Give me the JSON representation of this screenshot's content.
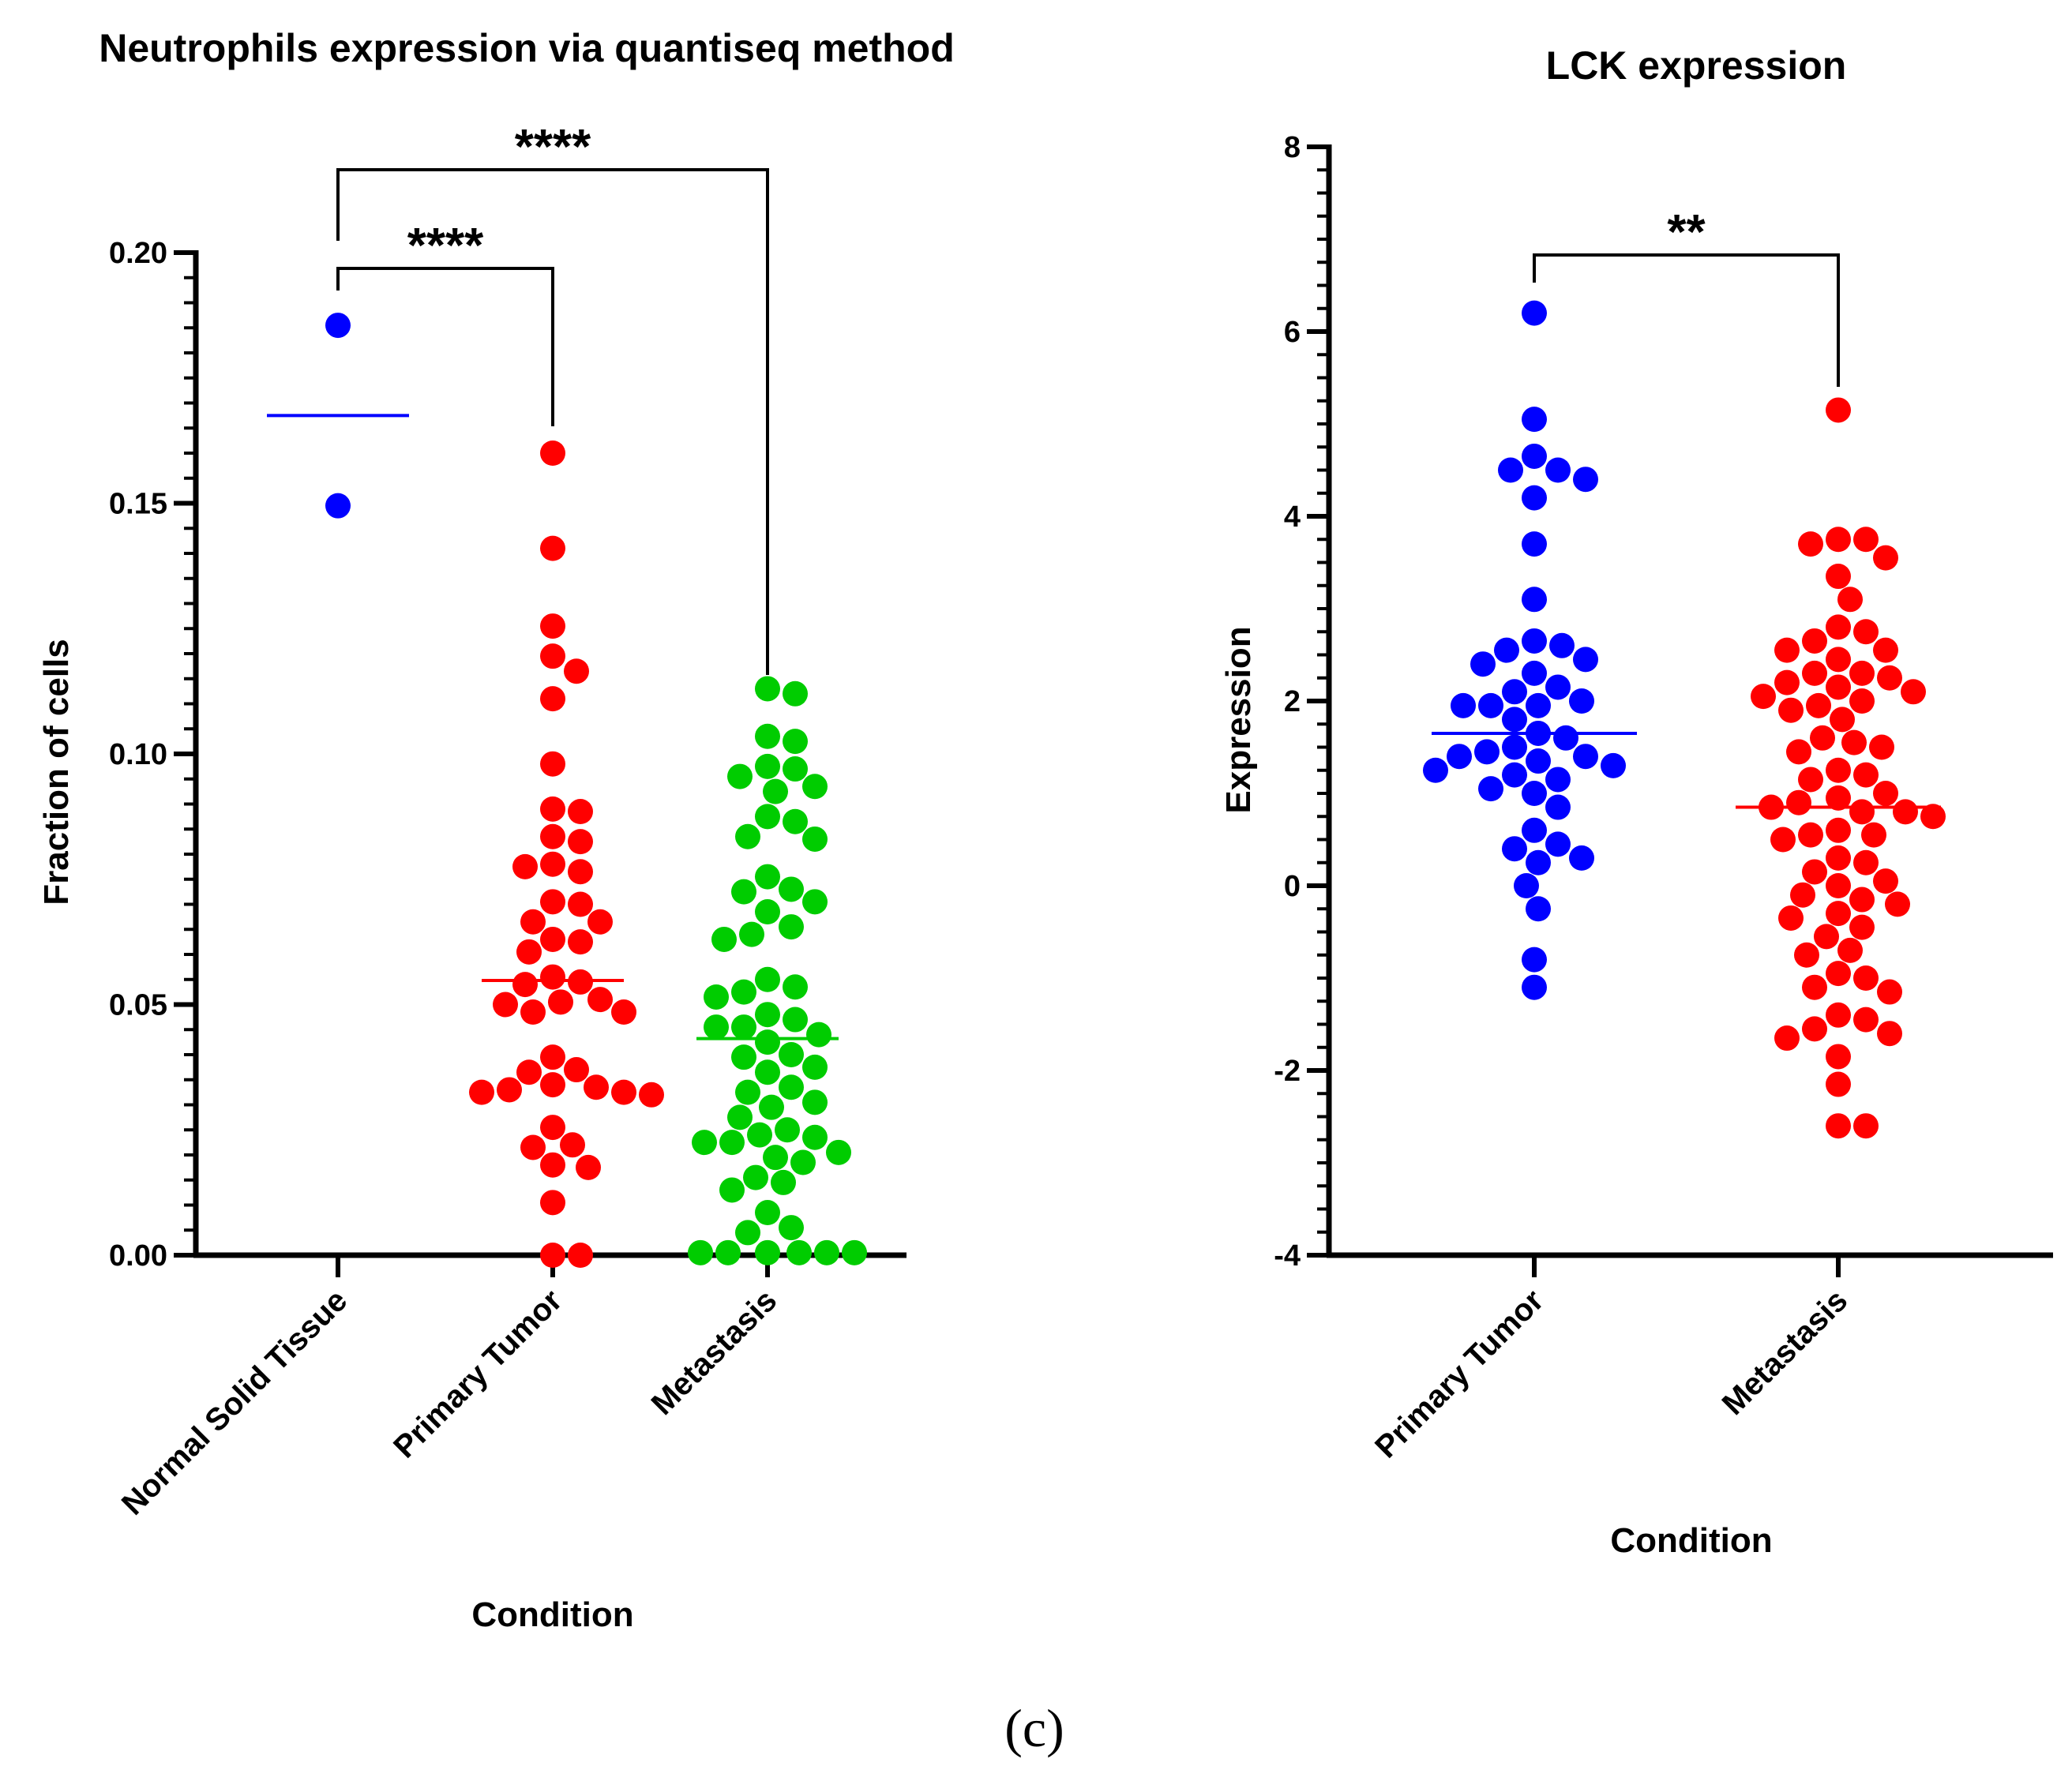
{
  "panel_label": "(c)",
  "chart_data": [
    {
      "type": "scatter",
      "title": "Neutrophils expression via quantiseq method",
      "xlabel": "Condition",
      "ylabel": "Fraction of cells",
      "ylim": [
        0,
        0.2
      ],
      "yticks": [
        "0.00",
        "0.05",
        "0.10",
        "0.15",
        "0.20"
      ],
      "categories": [
        "Normal Solid Tissue",
        "Primary Tumor",
        "Metastasis"
      ],
      "series": [
        {
          "name": "Normal Solid Tissue",
          "color": "#0000ff",
          "mean": 0.1675,
          "values": [
            0.1855,
            0.1495
          ]
        },
        {
          "name": "Primary Tumor",
          "color": "#ff0000",
          "mean": 0.0548,
          "values": [
            0.16,
            0.141,
            0.1255,
            0.1195,
            0.1165,
            0.111,
            0.098,
            0.089,
            0.0885,
            0.0835,
            0.0825,
            0.078,
            0.0775,
            0.0765,
            0.0705,
            0.07,
            0.0665,
            0.0665,
            0.063,
            0.0625,
            0.0605,
            0.0555,
            0.054,
            0.0545,
            0.05,
            0.0505,
            0.051,
            0.0485,
            0.0485,
            0.0395,
            0.037,
            0.0365,
            0.0335,
            0.034,
            0.0325,
            0.033,
            0.032,
            0.0325,
            0.0255,
            0.022,
            0.0215,
            0.018,
            0.0175,
            0.0105,
            0.0,
            0.0
          ]
        },
        {
          "name": "Metastasis",
          "color": "#00cc00",
          "mean": 0.0432,
          "values": [
            0.113,
            0.112,
            0.1035,
            0.1025,
            0.0975,
            0.097,
            0.0955,
            0.0935,
            0.0925,
            0.0875,
            0.0865,
            0.083,
            0.0835,
            0.0755,
            0.073,
            0.0725,
            0.0705,
            0.0685,
            0.0655,
            0.064,
            0.063,
            0.055,
            0.0535,
            0.0525,
            0.0515,
            0.048,
            0.047,
            0.0455,
            0.0455,
            0.044,
            0.0425,
            0.04,
            0.0395,
            0.0375,
            0.0365,
            0.0335,
            0.0325,
            0.0305,
            0.0295,
            0.0275,
            0.025,
            0.024,
            0.0235,
            0.0225,
            0.0225,
            0.0205,
            0.0195,
            0.0185,
            0.0155,
            0.0145,
            0.013,
            0.0085,
            0.0055,
            0.0045,
            0.0005,
            0.0005,
            0.0005,
            0.0005,
            0.0005,
            0.0005
          ]
        }
      ],
      "comparisons": [
        {
          "from": "Normal Solid Tissue",
          "to": "Primary Tumor",
          "label": "****"
        },
        {
          "from": "Normal Solid Tissue",
          "to": "Metastasis",
          "label": "****"
        }
      ]
    },
    {
      "type": "scatter",
      "title": "LCK expression",
      "xlabel": "Condition",
      "ylabel": "Expression",
      "ylim": [
        -4,
        8
      ],
      "yticks": [
        "-4",
        "-2",
        "0",
        "2",
        "4",
        "6",
        "8"
      ],
      "categories": [
        "Primary Tumor",
        "Metastasis"
      ],
      "series": [
        {
          "name": "Primary Tumor",
          "color": "#0000ff",
          "mean": 1.65,
          "values": [
            6.2,
            5.05,
            4.65,
            4.5,
            4.5,
            4.4,
            4.2,
            3.7,
            3.1,
            2.65,
            2.6,
            2.55,
            2.45,
            2.4,
            2.3,
            2.15,
            2.1,
            2.0,
            1.95,
            1.95,
            1.95,
            1.8,
            1.65,
            1.6,
            1.5,
            1.45,
            1.4,
            1.4,
            1.35,
            1.3,
            1.25,
            1.2,
            1.15,
            1.05,
            1.0,
            0.85,
            0.6,
            0.45,
            0.4,
            0.3,
            0.25,
            0.0,
            -0.25,
            -0.8,
            -1.1
          ]
        },
        {
          "name": "Metastasis",
          "color": "#ff0000",
          "mean": 0.85,
          "values": [
            5.15,
            3.75,
            3.75,
            3.7,
            3.55,
            3.35,
            3.1,
            2.8,
            2.75,
            2.65,
            2.55,
            2.55,
            2.45,
            2.3,
            2.3,
            2.25,
            2.2,
            2.15,
            2.1,
            2.05,
            2.0,
            1.95,
            1.9,
            1.8,
            1.6,
            1.55,
            1.5,
            1.45,
            1.25,
            1.2,
            1.15,
            1.0,
            0.95,
            0.9,
            0.85,
            0.8,
            0.8,
            0.75,
            0.6,
            0.55,
            0.55,
            0.5,
            0.3,
            0.25,
            0.15,
            0.05,
            0.0,
            -0.1,
            -0.15,
            -0.2,
            -0.3,
            -0.35,
            -0.45,
            -0.55,
            -0.7,
            -0.75,
            -0.95,
            -1.0,
            -1.1,
            -1.15,
            -1.4,
            -1.45,
            -1.55,
            -1.6,
            -1.65,
            -1.85,
            -2.15,
            -2.6,
            -2.6
          ]
        }
      ],
      "comparisons": [
        {
          "from": "Primary Tumor",
          "to": "Metastasis",
          "label": "**"
        }
      ]
    }
  ]
}
